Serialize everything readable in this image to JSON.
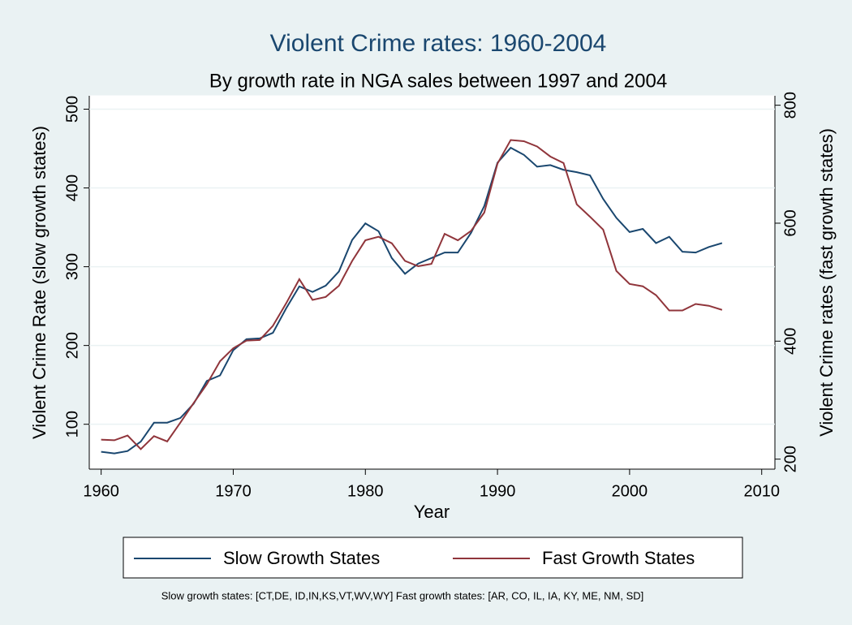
{
  "chart_data": {
    "type": "line",
    "title": "Violent Crime rates: 1960-2004",
    "subtitle": "By growth rate in NGA sales between 1997 and 2004",
    "x_label": "Year",
    "y_label": "Violent Crime Rate (slow growth states)",
    "y2_label": "Violent Crime rates (fast growth states)",
    "note": "Slow growth states: [CT,DE, ID,IN,KS,VT,WV,WY]  Fast growth states: [AR, CO, IL, IA, KY, ME, NM, SD]",
    "x": [
      1960,
      1961,
      1962,
      1963,
      1964,
      1965,
      1966,
      1967,
      1968,
      1969,
      1970,
      1971,
      1972,
      1973,
      1974,
      1975,
      1976,
      1977,
      1978,
      1979,
      1980,
      1981,
      1982,
      1983,
      1984,
      1985,
      1986,
      1987,
      1988,
      1989,
      1990,
      1991,
      1992,
      1993,
      1994,
      1995,
      1996,
      1997,
      1998,
      1999,
      2000,
      2001,
      2002,
      2003,
      2004,
      2005,
      2006,
      2007
    ],
    "series": [
      {
        "name": "Slow Growth States",
        "color": "#1a476f",
        "axis": "y",
        "values": [
          65,
          63,
          66,
          78,
          102,
          102,
          108,
          126,
          155,
          162,
          194,
          208,
          209,
          216,
          247,
          275,
          268,
          276,
          294,
          334,
          355,
          345,
          311,
          291,
          304,
          311,
          318,
          318,
          343,
          377,
          432,
          451,
          442,
          427,
          429,
          423,
          420,
          416,
          386,
          362,
          344,
          348,
          330,
          338,
          319,
          318,
          325,
          330
        ]
      },
      {
        "name": "Fast Growth States",
        "color": "#90353b",
        "axis": "y2",
        "values": [
          233,
          232,
          240,
          217,
          239,
          230,
          262,
          295,
          327,
          366,
          388,
          401,
          402,
          426,
          464,
          505,
          470,
          475,
          494,
          536,
          571,
          577,
          566,
          536,
          527,
          531,
          582,
          571,
          587,
          618,
          701,
          741,
          739,
          730,
          713,
          702,
          632,
          611,
          589,
          519,
          497,
          493,
          478,
          452,
          452,
          463,
          460,
          453
        ]
      }
    ],
    "xlim": [
      1959.1,
      2011
    ],
    "xticks": [
      1960,
      1970,
      1980,
      1990,
      2000,
      2010
    ],
    "ylim": [
      43,
      517
    ],
    "yticks": [
      100,
      200,
      300,
      400,
      500
    ],
    "y2lim": [
      183,
      816
    ],
    "y2ticks": [
      200,
      400,
      600,
      800
    ],
    "grid": true,
    "legend": "bottom"
  }
}
